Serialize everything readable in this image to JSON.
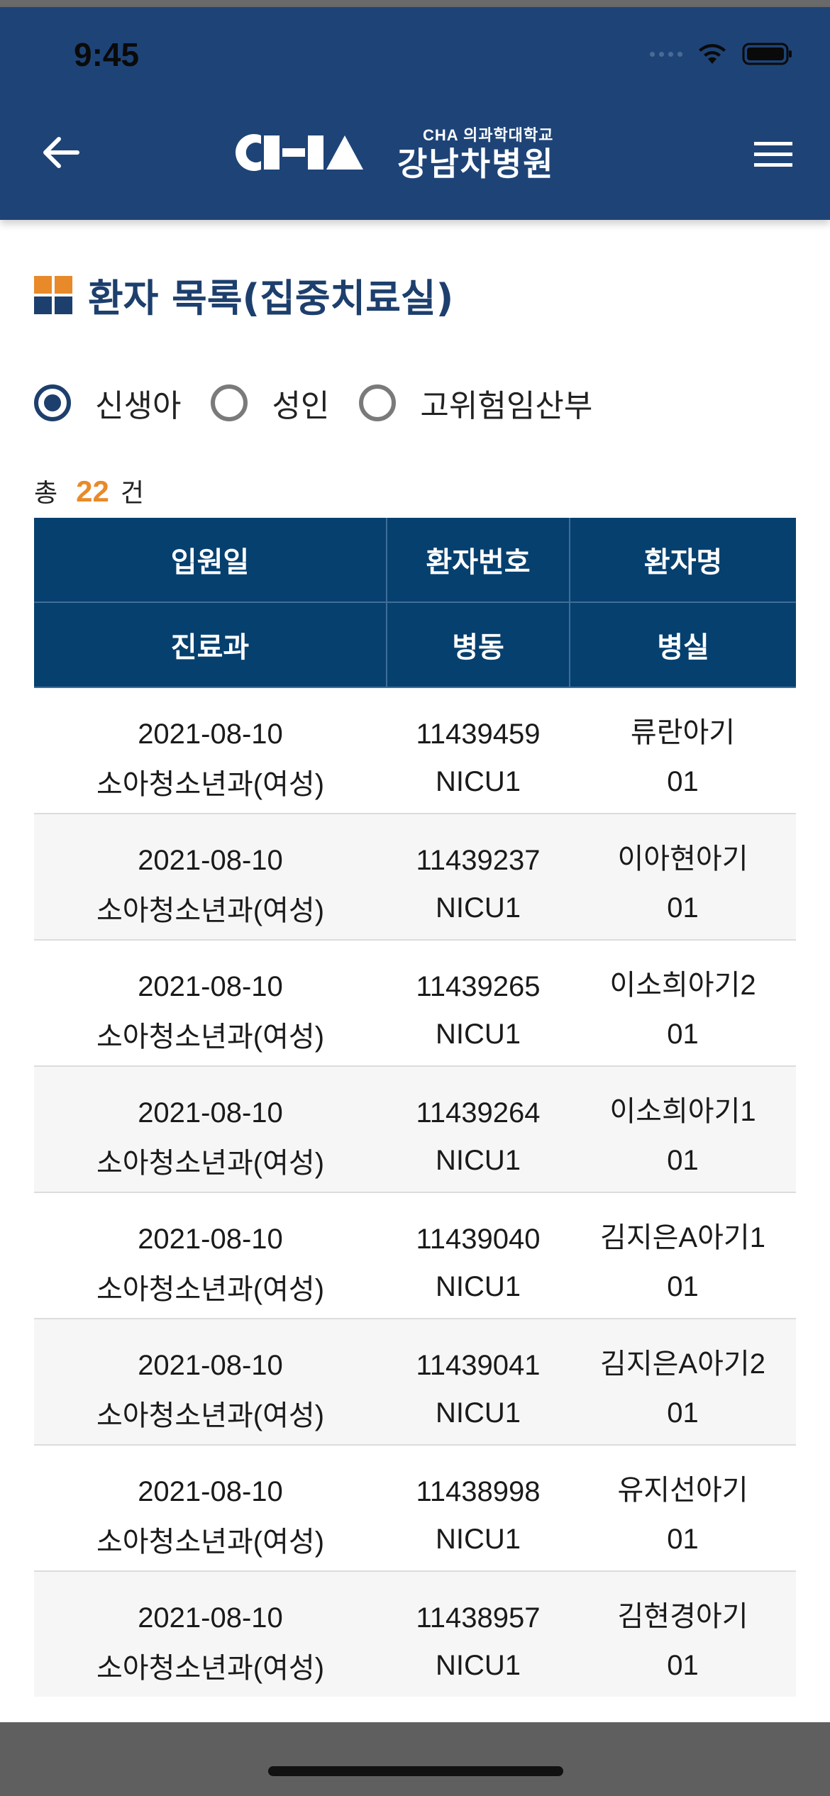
{
  "status_bar": {
    "time": "9:45"
  },
  "header": {
    "logo_sub": "CHA 의과학대학교",
    "logo_name": "강남차병원",
    "logo_brand": "CHA"
  },
  "page": {
    "title": "환자 목록(집중치료실)"
  },
  "filter": {
    "options": [
      {
        "label": "신생아",
        "checked": true
      },
      {
        "label": "성인",
        "checked": false
      },
      {
        "label": "고위험임산부",
        "checked": false
      }
    ]
  },
  "count": {
    "prefix": "총",
    "value": "22",
    "suffix": "건"
  },
  "table": {
    "headers_row1": [
      "입원일",
      "환자번호",
      "환자명"
    ],
    "headers_row2": [
      "진료과",
      "병동",
      "병실"
    ],
    "rows": [
      {
        "date": "2021-08-10",
        "patient_no": "11439459",
        "name": "류란아기",
        "dept": "소아청소년과(여성)",
        "ward": "NICU1",
        "room": "01"
      },
      {
        "date": "2021-08-10",
        "patient_no": "11439237",
        "name": "이아현아기",
        "dept": "소아청소년과(여성)",
        "ward": "NICU1",
        "room": "01"
      },
      {
        "date": "2021-08-10",
        "patient_no": "11439265",
        "name": "이소희아기2",
        "dept": "소아청소년과(여성)",
        "ward": "NICU1",
        "room": "01"
      },
      {
        "date": "2021-08-10",
        "patient_no": "11439264",
        "name": "이소희아기1",
        "dept": "소아청소년과(여성)",
        "ward": "NICU1",
        "room": "01"
      },
      {
        "date": "2021-08-10",
        "patient_no": "11439040",
        "name": "김지은A아기1",
        "dept": "소아청소년과(여성)",
        "ward": "NICU1",
        "room": "01"
      },
      {
        "date": "2021-08-10",
        "patient_no": "11439041",
        "name": "김지은A아기2",
        "dept": "소아청소년과(여성)",
        "ward": "NICU1",
        "room": "01"
      },
      {
        "date": "2021-08-10",
        "patient_no": "11438998",
        "name": "유지선아기",
        "dept": "소아청소년과(여성)",
        "ward": "NICU1",
        "room": "01"
      },
      {
        "date": "2021-08-10",
        "patient_no": "11438957",
        "name": "김현경아기",
        "dept": "소아청소년과(여성)",
        "ward": "NICU1",
        "room": "01"
      }
    ]
  },
  "colors": {
    "header_bg": "#1e4477",
    "table_header_bg": "#06406f",
    "accent_orange": "#e88a2a",
    "title_blue": "#1d3f6d"
  },
  "icons": {
    "back": "arrow-left-icon",
    "menu": "hamburger-menu-icon",
    "title": "grid-square-icon",
    "wifi": "wifi-icon",
    "battery": "battery-icon"
  }
}
